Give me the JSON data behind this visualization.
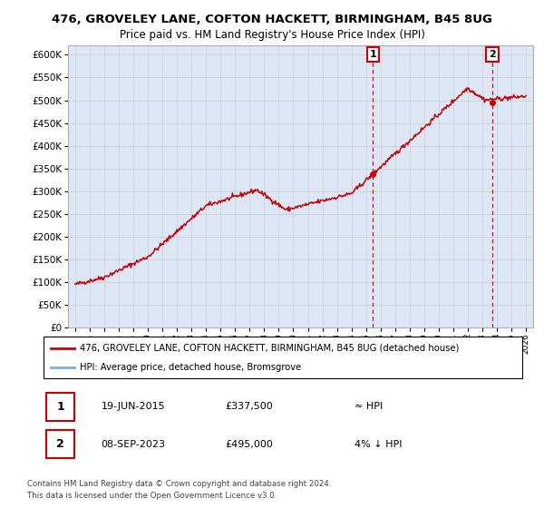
{
  "title_line1": "476, GROVELEY LANE, COFTON HACKETT, BIRMINGHAM, B45 8UG",
  "title_line2": "Price paid vs. HM Land Registry's House Price Index (HPI)",
  "legend_label1": "476, GROVELEY LANE, COFTON HACKETT, BIRMINGHAM, B45 8UG (detached house)",
  "legend_label2": "HPI: Average price, detached house, Bromsgrove",
  "annotation1_date": "19-JUN-2015",
  "annotation1_price": "£337,500",
  "annotation1_hpi": "≈ HPI",
  "annotation2_date": "08-SEP-2023",
  "annotation2_price": "£495,000",
  "annotation2_hpi": "4% ↓ HPI",
  "footer1": "Contains HM Land Registry data © Crown copyright and database right 2024.",
  "footer2": "This data is licensed under the Open Government Licence v3.0.",
  "ylim_min": 0,
  "ylim_max": 620000,
  "hpi_color": "#7bafd4",
  "price_color": "#cc0000",
  "annotation_color": "#cc0000",
  "background_color": "#ffffff",
  "grid_color": "#cccccc",
  "plot_bg_color": "#dce6f5",
  "sale1_year": 2015.47,
  "sale1_price": 337500,
  "sale2_year": 2023.69,
  "sale2_price": 495000
}
